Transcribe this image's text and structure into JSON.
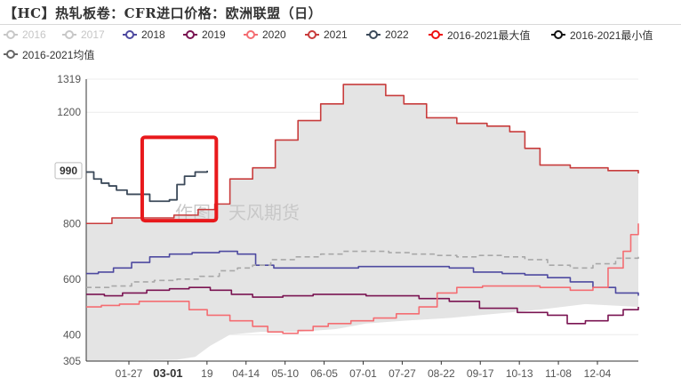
{
  "title": "【HC】热轧板卷：CFR进口价格：欧洲联盟（日）",
  "watermark": "作图：天风期货",
  "highlight_y_label": "990",
  "legend": [
    {
      "label": "2016",
      "color": "#c8c8c8",
      "active": false
    },
    {
      "label": "2017",
      "color": "#c8c8c8",
      "active": false
    },
    {
      "label": "2018",
      "color": "#4e4aa0",
      "active": true
    },
    {
      "label": "2019",
      "color": "#7a1452",
      "active": true
    },
    {
      "label": "2020",
      "color": "#f46d72",
      "active": true
    },
    {
      "label": "2021",
      "color": "#c83c3c",
      "active": true
    },
    {
      "label": "2022",
      "color": "#3c4a5a",
      "active": true
    },
    {
      "label": "2016-2021最大值",
      "color": "#ee1111",
      "active": true
    },
    {
      "label": "2016-2021最小值",
      "color": "#111111",
      "active": true
    },
    {
      "label": "2016-2021均值",
      "color": "#666666",
      "active": true
    }
  ],
  "chart_data": {
    "type": "line",
    "title": "【HC】热轧板卷：CFR进口价格：欧洲联盟（日）",
    "x_ticks": [
      "01-27",
      "03-01",
      "19",
      "04-14",
      "05-10",
      "06-05",
      "07-01",
      "07-27",
      "08-22",
      "09-17",
      "10-13",
      "11-08",
      "12-04"
    ],
    "x_tick_bold": "03-01",
    "y_ticks": [
      305,
      400,
      600,
      800,
      1200,
      1319
    ],
    "ylim": [
      305,
      1319
    ],
    "xlim": [
      0,
      365
    ],
    "grid": "horizontal",
    "band": {
      "name": "2016-2021最大值/最小值",
      "color": "#e4e4e4",
      "upper": [
        [
          0,
          800
        ],
        [
          17,
          800
        ],
        [
          17,
          820
        ],
        [
          40,
          820
        ],
        [
          58,
          830
        ],
        [
          74,
          850
        ],
        [
          85,
          870
        ],
        [
          95,
          960
        ],
        [
          110,
          1000
        ],
        [
          125,
          1100
        ],
        [
          140,
          1170
        ],
        [
          155,
          1230
        ],
        [
          170,
          1300
        ],
        [
          185,
          1300
        ],
        [
          198,
          1260
        ],
        [
          210,
          1230
        ],
        [
          225,
          1180
        ],
        [
          245,
          1160
        ],
        [
          265,
          1150
        ],
        [
          280,
          1130
        ],
        [
          290,
          1070
        ],
        [
          300,
          1010
        ],
        [
          320,
          1000
        ],
        [
          345,
          990
        ],
        [
          365,
          980
        ]
      ],
      "lower": [
        [
          0,
          305
        ],
        [
          60,
          310
        ],
        [
          72,
          320
        ],
        [
          82,
          360
        ],
        [
          95,
          400
        ],
        [
          115,
          410
        ],
        [
          140,
          410
        ],
        [
          165,
          420
        ],
        [
          185,
          440
        ],
        [
          210,
          450
        ],
        [
          240,
          460
        ],
        [
          270,
          475
        ],
        [
          300,
          490
        ],
        [
          330,
          510
        ],
        [
          365,
          500
        ]
      ]
    },
    "series": [
      {
        "name": "2018",
        "color": "#4e4aa0",
        "dash": false,
        "points": [
          [
            0,
            620
          ],
          [
            8,
            625
          ],
          [
            18,
            640
          ],
          [
            30,
            660
          ],
          [
            42,
            680
          ],
          [
            55,
            690
          ],
          [
            70,
            695
          ],
          [
            88,
            700
          ],
          [
            100,
            690
          ],
          [
            112,
            650
          ],
          [
            124,
            640
          ],
          [
            140,
            640
          ],
          [
            160,
            640
          ],
          [
            180,
            645
          ],
          [
            200,
            645
          ],
          [
            220,
            645
          ],
          [
            240,
            640
          ],
          [
            256,
            625
          ],
          [
            275,
            620
          ],
          [
            290,
            615
          ],
          [
            305,
            605
          ],
          [
            320,
            590
          ],
          [
            335,
            570
          ],
          [
            350,
            550
          ],
          [
            365,
            540
          ]
        ]
      },
      {
        "name": "2019",
        "color": "#7a1452",
        "dash": false,
        "points": [
          [
            0,
            545
          ],
          [
            12,
            540
          ],
          [
            24,
            550
          ],
          [
            40,
            560
          ],
          [
            55,
            565
          ],
          [
            68,
            570
          ],
          [
            82,
            560
          ],
          [
            96,
            545
          ],
          [
            110,
            535
          ],
          [
            130,
            540
          ],
          [
            150,
            545
          ],
          [
            170,
            545
          ],
          [
            185,
            540
          ],
          [
            200,
            540
          ],
          [
            220,
            530
          ],
          [
            240,
            520
          ],
          [
            260,
            495
          ],
          [
            285,
            480
          ],
          [
            305,
            470
          ],
          [
            318,
            440
          ],
          [
            330,
            450
          ],
          [
            345,
            470
          ],
          [
            355,
            490
          ],
          [
            365,
            500
          ]
        ]
      },
      {
        "name": "2020",
        "color": "#f46d72",
        "dash": false,
        "points": [
          [
            0,
            500
          ],
          [
            10,
            505
          ],
          [
            22,
            510
          ],
          [
            35,
            520
          ],
          [
            48,
            520
          ],
          [
            60,
            520
          ],
          [
            68,
            490
          ],
          [
            80,
            470
          ],
          [
            95,
            450
          ],
          [
            110,
            430
          ],
          [
            120,
            410
          ],
          [
            130,
            405
          ],
          [
            140,
            415
          ],
          [
            150,
            430
          ],
          [
            160,
            440
          ],
          [
            175,
            450
          ],
          [
            190,
            460
          ],
          [
            205,
            475
          ],
          [
            220,
            500
          ],
          [
            232,
            550
          ],
          [
            245,
            570
          ],
          [
            262,
            575
          ],
          [
            282,
            575
          ],
          [
            300,
            570
          ],
          [
            320,
            560
          ],
          [
            335,
            570
          ],
          [
            345,
            640
          ],
          [
            355,
            700
          ],
          [
            360,
            760
          ],
          [
            365,
            800
          ]
        ]
      },
      {
        "name": "2021",
        "color": "#c83c3c",
        "dash": false,
        "points": [
          [
            0,
            800
          ],
          [
            17,
            800
          ],
          [
            17,
            820
          ],
          [
            40,
            820
          ],
          [
            58,
            830
          ],
          [
            74,
            850
          ],
          [
            85,
            870
          ],
          [
            95,
            960
          ],
          [
            110,
            1000
          ],
          [
            125,
            1100
          ],
          [
            140,
            1170
          ],
          [
            155,
            1230
          ],
          [
            170,
            1300
          ],
          [
            185,
            1300
          ],
          [
            198,
            1260
          ],
          [
            210,
            1230
          ],
          [
            225,
            1180
          ],
          [
            245,
            1160
          ],
          [
            265,
            1150
          ],
          [
            280,
            1130
          ],
          [
            290,
            1070
          ],
          [
            300,
            1010
          ],
          [
            320,
            1000
          ],
          [
            345,
            990
          ],
          [
            365,
            980
          ]
        ]
      },
      {
        "name": "2022",
        "color": "#3c4a5a",
        "dash": false,
        "points": [
          [
            0,
            985
          ],
          [
            5,
            960
          ],
          [
            10,
            945
          ],
          [
            15,
            935
          ],
          [
            20,
            920
          ],
          [
            27,
            905
          ],
          [
            35,
            905
          ],
          [
            42,
            880
          ],
          [
            50,
            880
          ],
          [
            55,
            885
          ],
          [
            60,
            940
          ],
          [
            65,
            970
          ],
          [
            72,
            985
          ],
          [
            80,
            990
          ]
        ]
      },
      {
        "name": "2016-2021均值",
        "color": "#a8a8a8",
        "dash": true,
        "points": [
          [
            0,
            570
          ],
          [
            15,
            575
          ],
          [
            30,
            590
          ],
          [
            45,
            595
          ],
          [
            60,
            600
          ],
          [
            75,
            610
          ],
          [
            88,
            630
          ],
          [
            100,
            640
          ],
          [
            110,
            650
          ],
          [
            122,
            670
          ],
          [
            138,
            680
          ],
          [
            155,
            690
          ],
          [
            170,
            700
          ],
          [
            185,
            700
          ],
          [
            200,
            695
          ],
          [
            215,
            690
          ],
          [
            230,
            685
          ],
          [
            245,
            680
          ],
          [
            260,
            685
          ],
          [
            275,
            680
          ],
          [
            290,
            670
          ],
          [
            305,
            650
          ],
          [
            320,
            640
          ],
          [
            335,
            655
          ],
          [
            350,
            675
          ],
          [
            365,
            680
          ]
        ]
      }
    ],
    "annotation": {
      "type": "rectangle",
      "color": "#e8191c",
      "x_range": [
        37,
        86
      ],
      "y_range": [
        810,
        1110
      ]
    }
  }
}
